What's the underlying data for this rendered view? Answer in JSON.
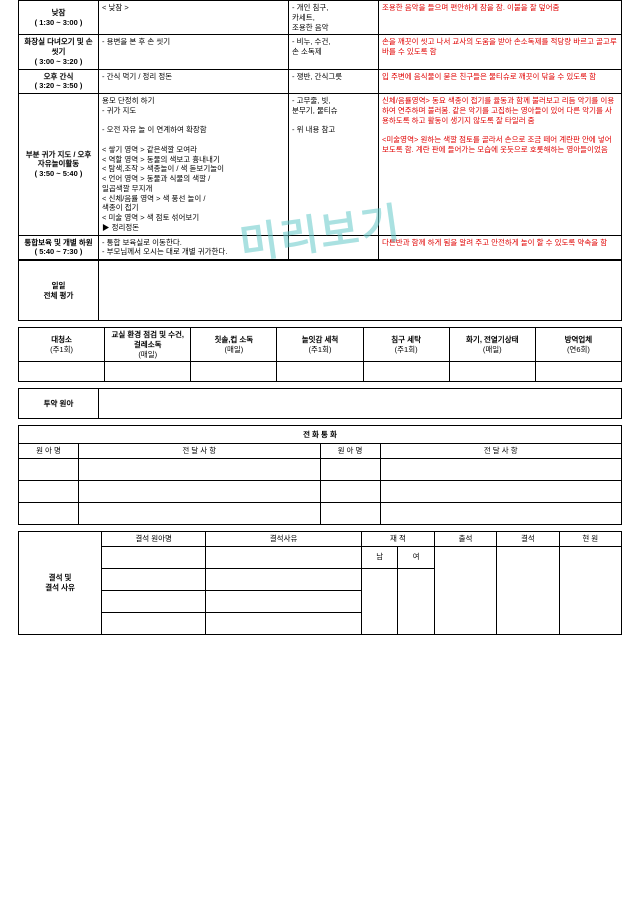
{
  "watermark": "미리보기",
  "schedule": [
    {
      "time_label": "낮잠",
      "time_range": "( 1:30 ~ 3:00 )",
      "activity": "< 낮잠 >",
      "materials": [
        "- 개인 침구,",
        "  카세트,",
        "  조용한 음악"
      ],
      "notes": "조용한 음악을 들으며 편안하게 잠을 잠. 이불을 잘 덮어줌"
    },
    {
      "time_label": "화장실 다녀오기 및 손 씻기",
      "time_range": "( 3:00 ~ 3:20 )",
      "activity": "- 용변을 본 후 손 씻기",
      "materials": [
        "- 비누, 수건,",
        "  손 소독제"
      ],
      "notes": "손을 깨끗이 씻고 나서 교사의 도움을 받아 손소독제를 적당량 바르고 골고루 바를 수 있도록 함"
    },
    {
      "time_label": "오후 간식",
      "time_range": "( 3:20 ~ 3:50 )",
      "activity": "- 간식 먹기 / 정리 정돈",
      "materials": [
        "- 쟁반, 간식그릇"
      ],
      "notes": "입 주변에 음식물이 묻은 친구들은 물티슈로 깨끗이 닦을 수 있도록 함"
    },
    {
      "time_label": "부분 귀가 지도 / 오후 자유놀이활동",
      "time_range": "( 3:50 ~ 5:40 )",
      "activity_lines": [
        " 용모 단정히 하기",
        "- 귀가 지도",
        "",
        "- 오전 자유 놀 이 연계하여 확장함",
        "",
        "< 쌓기 영역 >  같은색깔 모여라",
        "< 역할 영역 >  동물의 색보고 흉내내기",
        "< 탐색,조작 >  색종놀이 / 색 돋보기놀이",
        "< 언어 영역 >  동물과 식물의 색깔 /",
        "             일곱색깔 무지개",
        "< 신체/음률 영역 > 색 풍선 놀이 /",
        "             색종이 접기",
        "< 미술 영역 >  색 점토 섞어보기",
        "▶ 정리정돈"
      ],
      "materials": [
        "- 고무줄, 빗,",
        "  분무기, 물티슈",
        "",
        "- 위 내용 참고"
      ],
      "notes_lines": [
        "신체/음률영역> 동요 색종이 접기를 율동과 함께 불러보고 리듬 악기를 이용하여 연주하며 불러봄. 같은 악기를 고집하는 영아들이 있어 다른 악기를 사용하도록 하고 활동이 생기지 않도록 잘 타일러 줌",
        "",
        "<미술영역> 원하는 색깔 점토를 골라서 손으로 조금 떼어 계란판 안에 넣어 보도록 함. 계란 판에 들어가는 모습에 웃듯으로 호롯해하는 영아들이었음"
      ]
    },
    {
      "time_label": "통합보육 및 개별 하원",
      "time_range": "( 5:40 ~ 7:30 )",
      "activity": "- 통합 보육실로 이동한다.\n- 부모님께서 오시는 대로 개별 귀가한다.",
      "materials": [],
      "notes": "다른반과 함께 하게 됨을 알려 주고 안전하게 놀이 할 수 있도록 약속을 함"
    }
  ],
  "daily_eval_label": "일일\n전체 평가",
  "clean_headers": [
    {
      "t": "대청소",
      "s": "(주1회)"
    },
    {
      "t": "교실 환경 점검 및 수건,걸레소독",
      "s": "(매일)"
    },
    {
      "t": "칫솔,컵 소독",
      "s": "(매일)"
    },
    {
      "t": "놀잇감 세척",
      "s": "(주1회)"
    },
    {
      "t": "침구 세탁",
      "s": "(주1회)"
    },
    {
      "t": "화기, 전열기상태",
      "s": "(매일)"
    },
    {
      "t": "방역업체",
      "s": "(연6회)"
    }
  ],
  "medicine_label": "투약 원아",
  "phone_title": "전 화 통 화",
  "phone_headers": [
    "원 아 명",
    "전 달 사 항",
    "원 아 명",
    "전 달 사 항"
  ],
  "absence": {
    "row_label": "결석 및\n결석 사유",
    "headers": [
      "결석 원아명",
      "결석사유",
      "재 적",
      "출석",
      "결석",
      "현 원"
    ],
    "sub_headers": [
      "남",
      "여"
    ]
  }
}
